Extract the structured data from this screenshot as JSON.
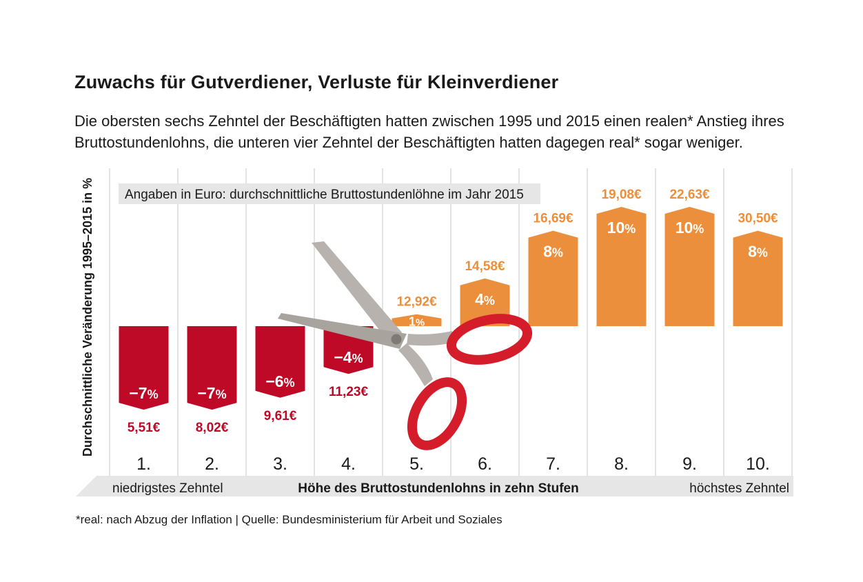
{
  "title": "Zuwachs für Gutverdiener, Verluste für Kleinverdiener",
  "subtitle": "Die obersten sechs Zehntel der Beschäftigten hatten zwischen 1995 und 2015 einen realen* Anstieg ihres Bruttostundenlohns, die unteren vier Zehntel der Beschäftigten hatten dagegen real* sogar weniger.",
  "footnote": "*real: nach Abzug der Inflation | Quelle: Bundesministerium für Arbeit und Soziales",
  "colors": {
    "negative": "#be0a26",
    "positive": "#ec8f3c",
    "grid": "#e3e3e3",
    "band": "#e6e6e6",
    "scissor_blade": "#b7b2ad",
    "scissor_handle": "#d41c2b"
  },
  "decoration": {
    "scissors_icon": "scissors-icon"
  },
  "chart_data": {
    "type": "bar",
    "ylabel": "Durchschnittliche Veränderung 1995–2015 in %",
    "xlabel": "Höhe des Bruttostundenlohns in zehn Stufen",
    "x_left_label": "niedrigstes Zehntel",
    "x_right_label": "höchstes Zehntel",
    "note": "Angaben in Euro: durchschnittliche Bruttostundenlöhne im Jahr 2015",
    "categories": [
      "1.",
      "2.",
      "3.",
      "4.",
      "5.",
      "6.",
      "7.",
      "8.",
      "9.",
      "10."
    ],
    "values": [
      -7,
      -7,
      -6,
      -4,
      1,
      4,
      8,
      10,
      10,
      8
    ],
    "value_labels": [
      "−7",
      "−7",
      "−6",
      "−4",
      "1",
      "4",
      "8",
      "10",
      "10",
      "8"
    ],
    "value_unit": "%",
    "wages": [
      "5,51€",
      "8,02€",
      "9,61€",
      "11,23€",
      "12,92€",
      "14,58€",
      "16,69€",
      "19,08€",
      "22,63€",
      "30,50€"
    ],
    "grid": true,
    "legend": "none"
  }
}
